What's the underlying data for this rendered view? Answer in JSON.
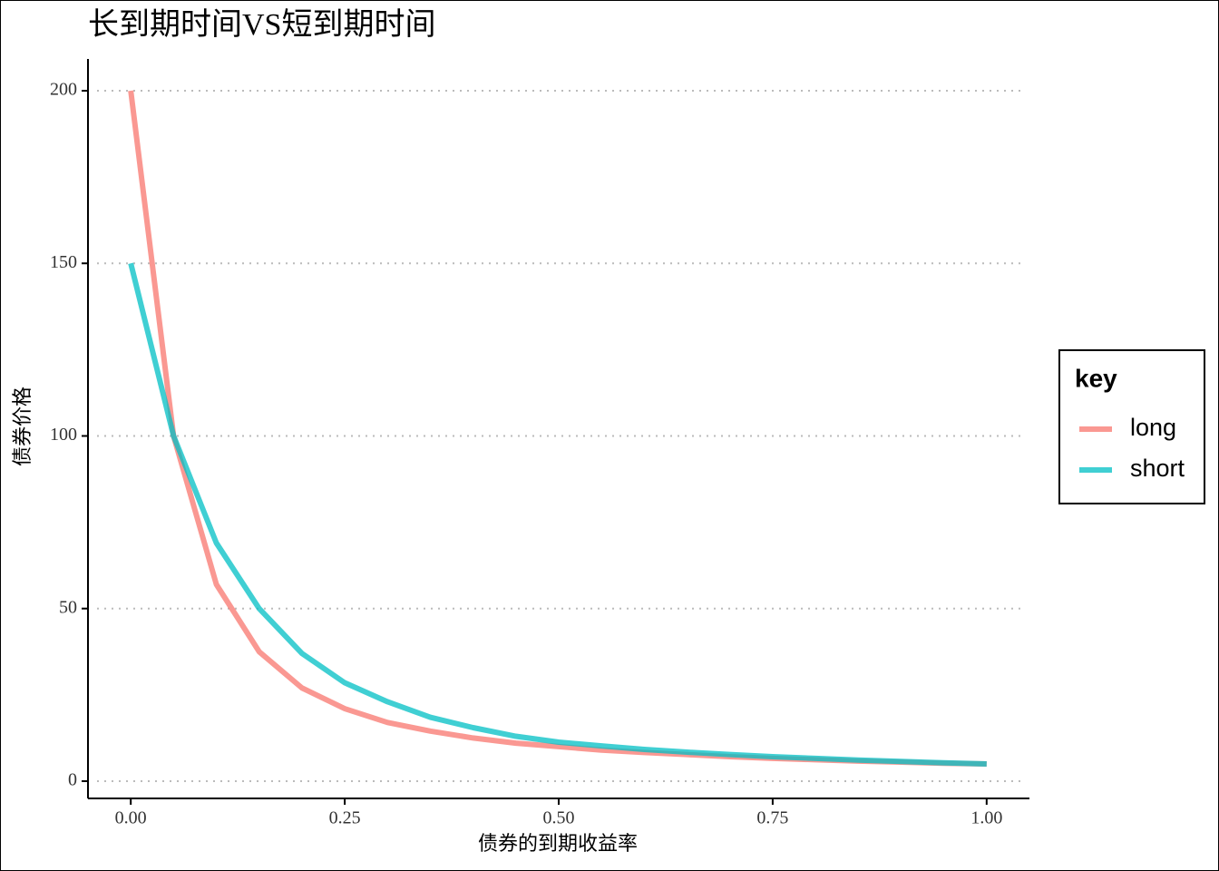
{
  "chart_data": {
    "type": "line",
    "title": "长到期时间VS短到期时间",
    "x_label": "债券的到期收益率",
    "y_label": "债券价格",
    "x": [
      0,
      0.05,
      0.1,
      0.15,
      0.2,
      0.25,
      0.3,
      0.35,
      0.4,
      0.45,
      0.5,
      0.55,
      0.6,
      0.65,
      0.7,
      0.75,
      0.8,
      0.85,
      0.9,
      0.95,
      1
    ],
    "series": [
      {
        "name": "long",
        "color": "#F8766D",
        "values": [
          200,
          100,
          57,
          37.5,
          27,
          21,
          17,
          14.5,
          12.5,
          11,
          10,
          9,
          8.3,
          7.7,
          7.1,
          6.6,
          6.2,
          5.8,
          5.5,
          5.2,
          5
        ]
      },
      {
        "name": "short",
        "color": "#00BFC4",
        "values": [
          150,
          100,
          69,
          50,
          37,
          28.5,
          23,
          18.5,
          15.5,
          13,
          11.3,
          10.2,
          9.2,
          8.4,
          7.7,
          7.1,
          6.6,
          6.1,
          5.7,
          5.3,
          5
        ]
      }
    ],
    "legend_title": "key",
    "xlim": [
      -0.05,
      1.05
    ],
    "ylim": [
      -5,
      209.2
    ],
    "xticks": [
      {
        "value": 0,
        "label": "0.00"
      },
      {
        "value": 0.25,
        "label": "0.25"
      },
      {
        "value": 0.5,
        "label": "0.50"
      },
      {
        "value": 0.75,
        "label": "0.75"
      },
      {
        "value": 1,
        "label": "1.00"
      }
    ],
    "yticks": [
      0,
      50,
      100,
      150,
      200
    ],
    "grid": true,
    "legend_position": "right"
  }
}
